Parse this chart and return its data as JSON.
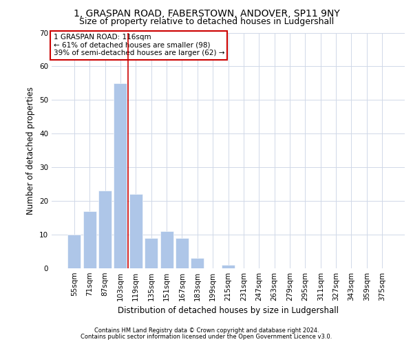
{
  "title": "1, GRASPAN ROAD, FABERSTOWN, ANDOVER, SP11 9NY",
  "subtitle": "Size of property relative to detached houses in Ludgershall",
  "xlabel": "Distribution of detached houses by size in Ludgershall",
  "ylabel": "Number of detached properties",
  "bar_color": "#aec6e8",
  "background_color": "#ffffff",
  "grid_color": "#d0d8e8",
  "categories": [
    "55sqm",
    "71sqm",
    "87sqm",
    "103sqm",
    "119sqm",
    "135sqm",
    "151sqm",
    "167sqm",
    "183sqm",
    "199sqm",
    "215sqm",
    "231sqm",
    "247sqm",
    "263sqm",
    "279sqm",
    "295sqm",
    "311sqm",
    "327sqm",
    "343sqm",
    "359sqm",
    "375sqm"
  ],
  "values": [
    10,
    17,
    23,
    55,
    22,
    9,
    11,
    9,
    3,
    0,
    1,
    0,
    0,
    0,
    0,
    0,
    0,
    0,
    0,
    0,
    0
  ],
  "ylim": [
    0,
    70
  ],
  "yticks": [
    0,
    10,
    20,
    30,
    40,
    50,
    60,
    70
  ],
  "vline_color": "#cc0000",
  "annotation_lines": [
    "1 GRASPAN ROAD: 116sqm",
    "← 61% of detached houses are smaller (98)",
    "39% of semi-detached houses are larger (62) →"
  ],
  "footer_line1": "Contains HM Land Registry data © Crown copyright and database right 2024.",
  "footer_line2": "Contains public sector information licensed under the Open Government Licence v3.0.",
  "title_fontsize": 10,
  "subtitle_fontsize": 9,
  "tick_fontsize": 7.5,
  "ylabel_fontsize": 8.5,
  "xlabel_fontsize": 8.5,
  "footer_fontsize": 6.0,
  "annotation_fontsize": 7.5
}
